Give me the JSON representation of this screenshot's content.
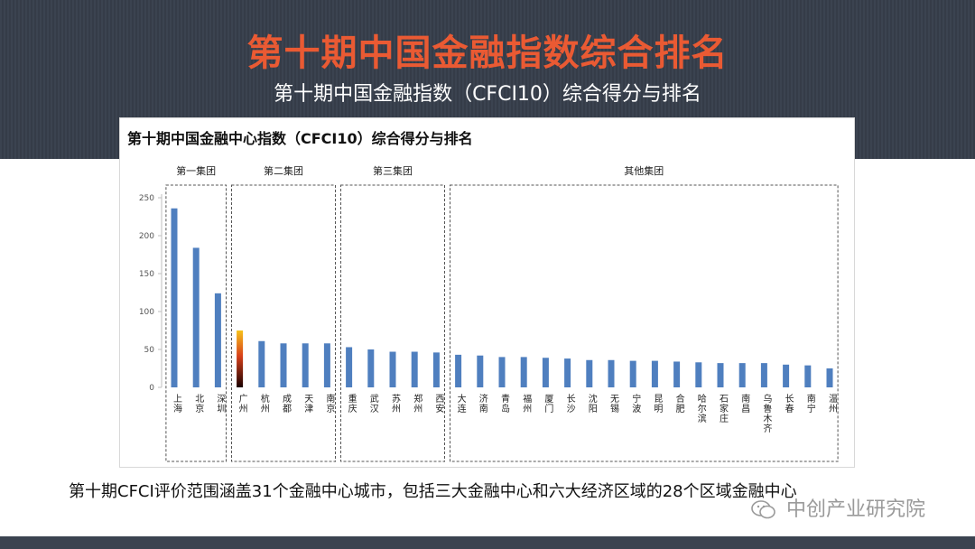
{
  "slide": {
    "title": "第十期中国金融指数综合排名",
    "subtitle": "第十期中国金融指数（CFCI10）综合得分与排名",
    "caption": "第十期CFCI评价范围涵盖31个金融中心城市，包括三大金融中心和六大经济区域的28个区域金融中心",
    "watermark": "中创产业研究院",
    "watermark_icon": "wechat-icon"
  },
  "chart_data": {
    "type": "bar",
    "title": "第十期中国金融中心指数（CFCI10）综合得分与排名",
    "categories": [
      "上海",
      "北京",
      "深圳",
      "广州",
      "杭州",
      "成都",
      "天津",
      "南京",
      "重庆",
      "武汉",
      "苏州",
      "郑州",
      "西安",
      "大连",
      "济南",
      "青岛",
      "福州",
      "厦门",
      "长沙",
      "沈阳",
      "无锡",
      "宁波",
      "昆明",
      "合肥",
      "哈尔滨",
      "石家庄",
      "南昌",
      "乌鲁木齐",
      "长春",
      "南宁",
      "温州"
    ],
    "values": [
      236,
      184,
      124,
      75,
      61,
      58,
      58,
      58,
      53,
      50,
      47,
      47,
      46,
      43,
      42,
      40,
      40,
      39,
      38,
      36,
      36,
      35,
      35,
      34,
      33,
      32,
      32,
      32,
      30,
      29,
      25
    ],
    "highlight_index": 3,
    "ylim": [
      0,
      250
    ],
    "yticks": [
      0,
      50,
      100,
      150,
      200,
      250
    ],
    "colors": {
      "bar": "#4f7fbf",
      "highlight_top": "#f6c21a",
      "highlight_bottom": "#1a0000",
      "group_border": "#555555"
    },
    "groups": [
      {
        "label": "第一集团",
        "start": 0,
        "end": 2
      },
      {
        "label": "第二集团",
        "start": 3,
        "end": 7
      },
      {
        "label": "第三集团",
        "start": 8,
        "end": 12
      },
      {
        "label": "其他集团",
        "start": 13,
        "end": 30
      }
    ]
  }
}
